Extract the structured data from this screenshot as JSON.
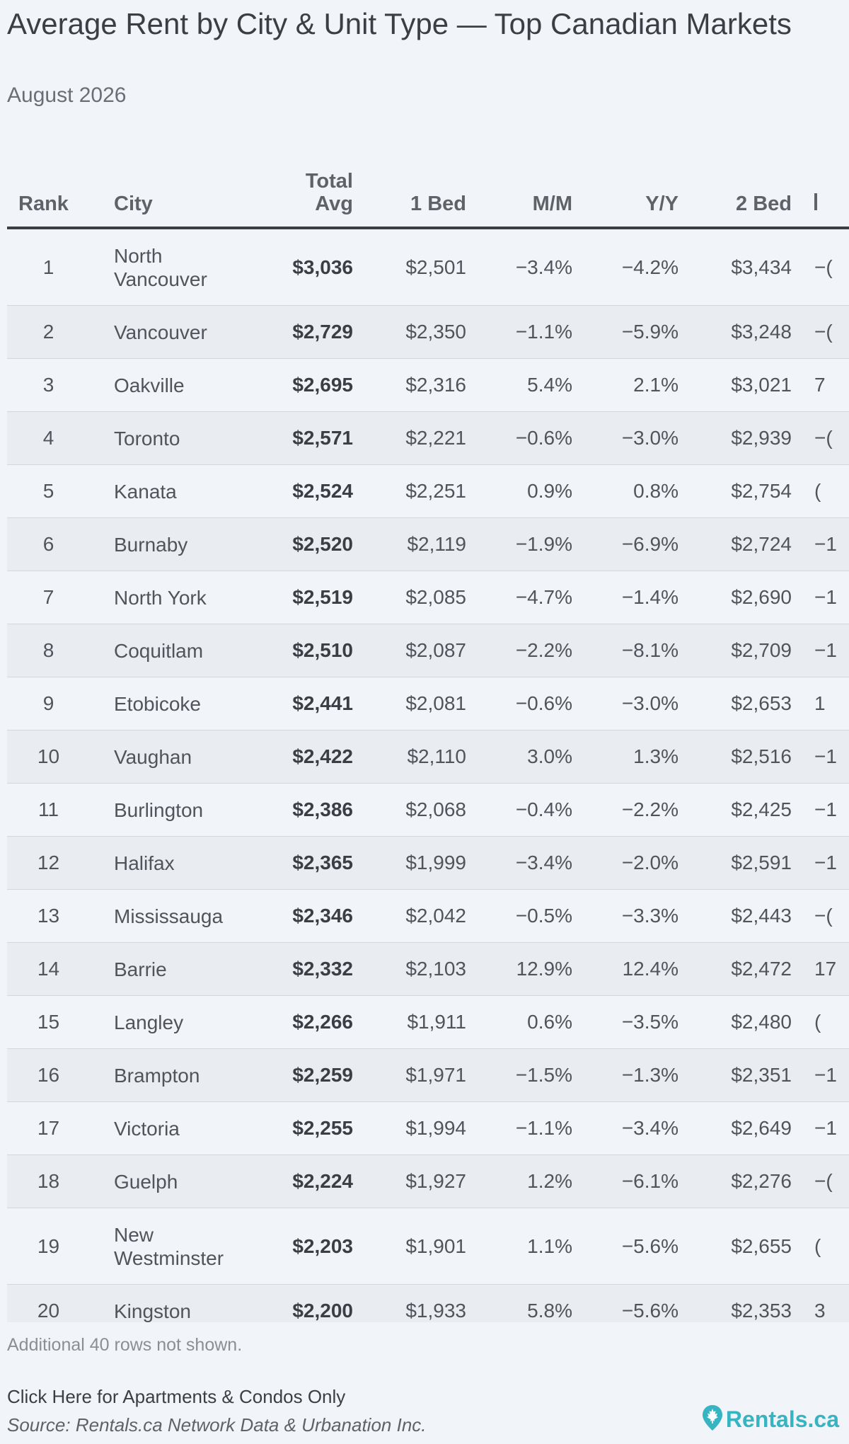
{
  "title": "Average Rent by City & Unit Type — Top Canadian Markets",
  "subtitle": "August 2026",
  "table": {
    "headers": {
      "rank": "Rank",
      "city": "City",
      "total_line1": "Total",
      "total_line2": "Avg",
      "bed1": "1 Bed",
      "mm": "M/M",
      "yy": "Y/Y",
      "bed2": "2 Bed"
    },
    "rows": [
      {
        "rank": "1",
        "city": "North Vancouver",
        "total": "$3,036",
        "bed1": "$2,501",
        "mm": "−3.4%",
        "yy": "−4.2%",
        "bed2": "$3,434",
        "next": "−("
      },
      {
        "rank": "2",
        "city": "Vancouver",
        "total": "$2,729",
        "bed1": "$2,350",
        "mm": "−1.1%",
        "yy": "−5.9%",
        "bed2": "$3,248",
        "next": "−("
      },
      {
        "rank": "3",
        "city": "Oakville",
        "total": "$2,695",
        "bed1": "$2,316",
        "mm": "5.4%",
        "yy": "2.1%",
        "bed2": "$3,021",
        "next": "7"
      },
      {
        "rank": "4",
        "city": "Toronto",
        "total": "$2,571",
        "bed1": "$2,221",
        "mm": "−0.6%",
        "yy": "−3.0%",
        "bed2": "$2,939",
        "next": "−("
      },
      {
        "rank": "5",
        "city": "Kanata",
        "total": "$2,524",
        "bed1": "$2,251",
        "mm": "0.9%",
        "yy": "0.8%",
        "bed2": "$2,754",
        "next": "("
      },
      {
        "rank": "6",
        "city": "Burnaby",
        "total": "$2,520",
        "bed1": "$2,119",
        "mm": "−1.9%",
        "yy": "−6.9%",
        "bed2": "$2,724",
        "next": "−1"
      },
      {
        "rank": "7",
        "city": "North York",
        "total": "$2,519",
        "bed1": "$2,085",
        "mm": "−4.7%",
        "yy": "−1.4%",
        "bed2": "$2,690",
        "next": "−1"
      },
      {
        "rank": "8",
        "city": "Coquitlam",
        "total": "$2,510",
        "bed1": "$2,087",
        "mm": "−2.2%",
        "yy": "−8.1%",
        "bed2": "$2,709",
        "next": "−1"
      },
      {
        "rank": "9",
        "city": "Etobicoke",
        "total": "$2,441",
        "bed1": "$2,081",
        "mm": "−0.6%",
        "yy": "−3.0%",
        "bed2": "$2,653",
        "next": "1"
      },
      {
        "rank": "10",
        "city": "Vaughan",
        "total": "$2,422",
        "bed1": "$2,110",
        "mm": "3.0%",
        "yy": "1.3%",
        "bed2": "$2,516",
        "next": "−1"
      },
      {
        "rank": "11",
        "city": "Burlington",
        "total": "$2,386",
        "bed1": "$2,068",
        "mm": "−0.4%",
        "yy": "−2.2%",
        "bed2": "$2,425",
        "next": "−1"
      },
      {
        "rank": "12",
        "city": "Halifax",
        "total": "$2,365",
        "bed1": "$1,999",
        "mm": "−3.4%",
        "yy": "−2.0%",
        "bed2": "$2,591",
        "next": "−1"
      },
      {
        "rank": "13",
        "city": "Mississauga",
        "total": "$2,346",
        "bed1": "$2,042",
        "mm": "−0.5%",
        "yy": "−3.3%",
        "bed2": "$2,443",
        "next": "−("
      },
      {
        "rank": "14",
        "city": "Barrie",
        "total": "$2,332",
        "bed1": "$2,103",
        "mm": "12.9%",
        "yy": "12.4%",
        "bed2": "$2,472",
        "next": "17"
      },
      {
        "rank": "15",
        "city": "Langley",
        "total": "$2,266",
        "bed1": "$1,911",
        "mm": "0.6%",
        "yy": "−3.5%",
        "bed2": "$2,480",
        "next": "("
      },
      {
        "rank": "16",
        "city": "Brampton",
        "total": "$2,259",
        "bed1": "$1,971",
        "mm": "−1.5%",
        "yy": "−1.3%",
        "bed2": "$2,351",
        "next": "−1"
      },
      {
        "rank": "17",
        "city": "Victoria",
        "total": "$2,255",
        "bed1": "$1,994",
        "mm": "−1.1%",
        "yy": "−3.4%",
        "bed2": "$2,649",
        "next": "−1"
      },
      {
        "rank": "18",
        "city": "Guelph",
        "total": "$2,224",
        "bed1": "$1,927",
        "mm": "1.2%",
        "yy": "−6.1%",
        "bed2": "$2,276",
        "next": "−("
      },
      {
        "rank": "19",
        "city": "New Westminster",
        "total": "$2,203",
        "bed1": "$1,901",
        "mm": "1.1%",
        "yy": "−5.6%",
        "bed2": "$2,655",
        "next": "("
      },
      {
        "rank": "20",
        "city": "Kingston",
        "total": "$2,200",
        "bed1": "$1,933",
        "mm": "5.8%",
        "yy": "−5.6%",
        "bed2": "$2,353",
        "next": "3"
      }
    ]
  },
  "footnote": "Additional 40 rows not shown.",
  "link_text": "Click Here for Apartments & Condos Only",
  "source": "Source: Rentals.ca Network Data & Urbanation Inc.",
  "logo": {
    "text": "Rentals.ca",
    "icon": "maple-leaf-pin-icon",
    "color": "#36b4c1"
  }
}
